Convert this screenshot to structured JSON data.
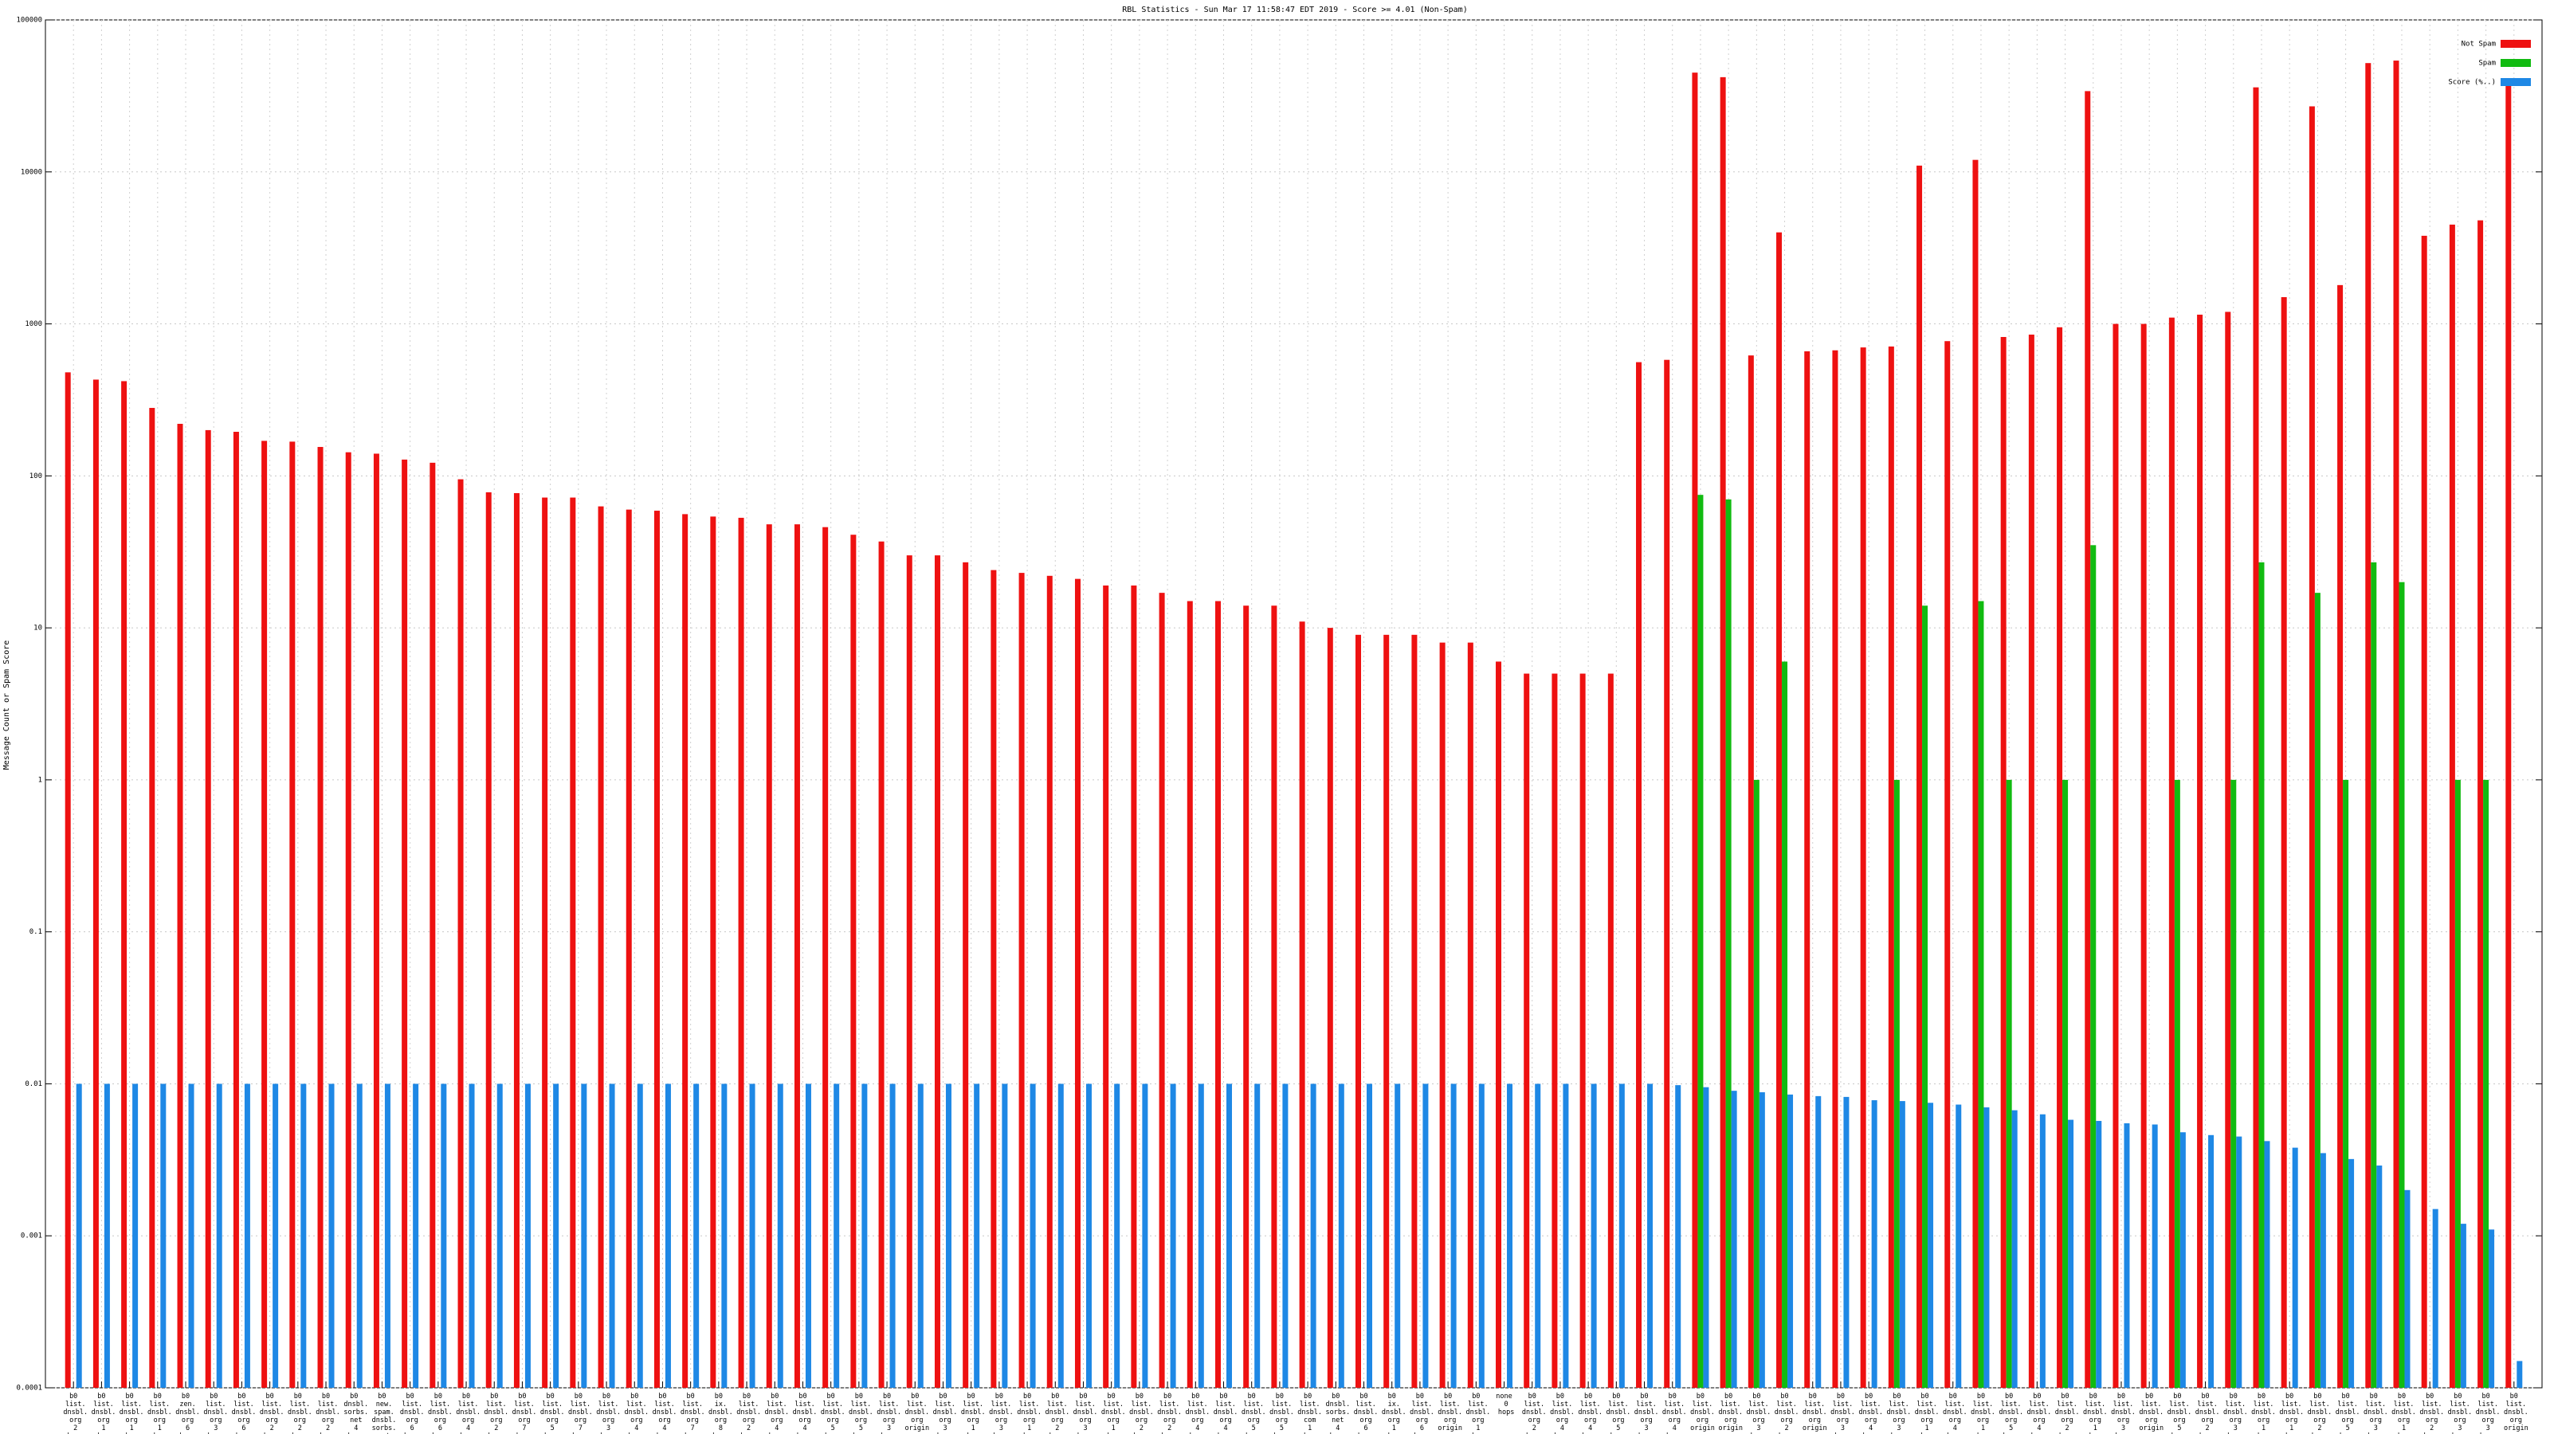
{
  "chart_data": {
    "type": "bar",
    "title": "RBL Statistics - Sun Mar 17 11:58:47 EDT 2019 - Score >= 4.01 (Non-Spam)",
    "y_label": "Message Count or Spam Score",
    "log_scale": true,
    "grid": true,
    "legend_corner": "top right",
    "ylim": [
      0.0001,
      100000
    ],
    "yticks": [
      0.0001,
      0.001,
      0.01,
      0.1,
      1,
      10,
      100,
      1000,
      10000,
      100000
    ],
    "categories": [
      "b0 list. dnsbl. org 2 hops",
      "b0 list. dnsbl. org 1 hop",
      "b0 list. dnsbl. org 1 hop",
      "b0 list. dnsbl. org 1 hop",
      "b0 zen. dnsbl. org 6 hops",
      "b0 list. dnsbl. org 3 hops",
      "b0 list. dnsbl. org 6 hops",
      "b0 list. dnsbl. org 2 hops",
      "b0 list. dnsbl. org 2 hops",
      "b0 list. dnsbl. org 2 hops",
      "b0 dnsbl. sorbs. net 4 hops",
      "b0 new. spam. dnsbl. sorbs. net 4 hops",
      "b0 list. dnsbl. org 6 hops",
      "b0 list. dnsbl. org 6 hops",
      "b0 list. dnsbl. org 4 hops",
      "b0 list. dnsbl. org 2 hops",
      "b0 list. dnsbl. org 7 hops",
      "b0 list. dnsbl. org 5 hops",
      "b0 list. dnsbl. org 7 hops",
      "b0 list. dnsbl. org 3 hops",
      "b0 list. dnsbl. org 4 hops",
      "b0 list. dnsbl. org 4 hops",
      "b0 list. dnsbl. org 7 hops",
      "b0 ix. dnsbl. org 8 hops",
      "b0 list. dnsbl. org 2 hops",
      "b0 list. dnsbl. org 4 hops",
      "b0 list. dnsbl. org 4 hops",
      "b0 list. dnsbl. org 5 hops",
      "b0 list. dnsbl. org 5 hops",
      "b0 list. dnsbl. org 3 hops",
      "b0 list. dnsbl. org origin",
      "b0 list. dnsbl. org 3 hops",
      "b0 list. dnsbl. org 1 hop",
      "b0 list. dnsbl. org 3 hops",
      "b0 list. dnsbl. org 1 hop",
      "b0 list. dnsbl. org 2 hops",
      "b0 list. dnsbl. org 3 hops",
      "b0 list. dnsbl. org 1 hop",
      "b0 list. dnsbl. org 2 hops",
      "b0 list. dnsbl. org 2 hops",
      "b0 list. dnsbl. org 4 hops",
      "b0 list. dnsbl. org 4 hops",
      "b0 list. dnsbl. org 5 hops",
      "b0 list. dnsbl. org 5 hops",
      "b0 list. dnsbl. com 1 hop",
      "b0 dnsbl. sorbs. net 4 hops",
      "b0 list. dnsbl. org 6 hops",
      "b0 ix. dnsbl. org 1 hop",
      "b0 list. dnsbl. org 6 hops",
      "b0 list. dnsbl. org origin",
      "b0 list. dnsbl. org 1 hop",
      "none 0 hops",
      "b0 list. dnsbl. org 2 hops",
      "b0 list. dnsbl. org 4 hops",
      "b0 list. dnsbl. org 4 hops",
      "b0 list. dnsbl. org 5 hops",
      "b0 list. dnsbl. org 3 hops",
      "b0 list. dnsbl. org 4 hops",
      "b0 list. dnsbl. org origin",
      "b0 list. dnsbl. org origin",
      "b0 list. dnsbl. org 3 hops",
      "b0 list. dnsbl. org 2 hops",
      "b0 list. dnsbl. org origin",
      "b0 list. dnsbl. org 3 hops",
      "b0 list. dnsbl. org 4 hops",
      "b0 list. dnsbl. org 3 hops",
      "b0 list. dnsbl. org 1 hop",
      "b0 list. dnsbl. org 4 hops",
      "b0 list. dnsbl. org 1 hop",
      "b0 list. dnsbl. org 5 hops",
      "b0 list. dnsbl. org 4 hops",
      "b0 list. dnsbl. org 2 hops",
      "b0 list. dnsbl. org 1 hop",
      "b0 list. dnsbl. org 3 hops",
      "b0 list. dnsbl. org origin",
      "b0 list. dnsbl. org 5 hops",
      "b0 list. dnsbl. org 2 hops",
      "b0 list. dnsbl. org 3 hops",
      "b0 list. dnsbl. org 1 hop",
      "b0 list. dnsbl. org 1 hop",
      "b0 list. dnsbl. org 2 hops",
      "b0 list. dnsbl. org 5 hops",
      "b0 list. dnsbl. org 3 hops",
      "b0 list. dnsbl. org 1 hop",
      "b0 list. dnsbl. org 2 hops",
      "b0 list. dnsbl. org 3 hops",
      "b0 list. dnsbl. org 3 hops",
      "b0 list. dnsbl. org origin"
    ],
    "series": [
      {
        "name": "Not Spam",
        "color": "#ee1111",
        "values": [
          480,
          430,
          420,
          280,
          220,
          200,
          195,
          170,
          168,
          155,
          143,
          140,
          128,
          122,
          95,
          78,
          77,
          72,
          72,
          63,
          60,
          59,
          56,
          54,
          53,
          48,
          48,
          46,
          41,
          37,
          30,
          30,
          27,
          24,
          23,
          22,
          21,
          19,
          19,
          17,
          15,
          15,
          14,
          14,
          11,
          10,
          9,
          9,
          9,
          8,
          8,
          6,
          5,
          5,
          5,
          5,
          560,
          580,
          45000,
          42000,
          620,
          4000,
          660,
          670,
          700,
          710,
          11000,
          770,
          12000,
          820,
          850,
          950,
          34000,
          1000,
          1000,
          1100,
          1150,
          1200,
          36000,
          1500,
          27000,
          1800,
          52000,
          54000,
          3800,
          4500,
          4800,
          40000
        ]
      },
      {
        "name": "Spam",
        "color": "#11bb11",
        "values": [
          null,
          null,
          null,
          null,
          null,
          null,
          null,
          null,
          null,
          null,
          null,
          null,
          null,
          null,
          null,
          null,
          null,
          null,
          null,
          null,
          null,
          null,
          null,
          null,
          null,
          null,
          null,
          null,
          null,
          null,
          null,
          null,
          null,
          null,
          null,
          null,
          null,
          null,
          null,
          null,
          null,
          null,
          null,
          null,
          null,
          null,
          null,
          null,
          null,
          null,
          null,
          null,
          null,
          null,
          null,
          null,
          null,
          null,
          75,
          70,
          1,
          6,
          null,
          null,
          null,
          1,
          14,
          null,
          15,
          1,
          null,
          1,
          35,
          null,
          null,
          1,
          null,
          1,
          27,
          null,
          17,
          1,
          27,
          20,
          null,
          1,
          1,
          null
        ]
      },
      {
        "name": "Score (%..)",
        "color": "#1e88e5",
        "values": [
          0.01,
          0.01,
          0.01,
          0.01,
          0.01,
          0.01,
          0.01,
          0.01,
          0.01,
          0.01,
          0.01,
          0.01,
          0.01,
          0.01,
          0.01,
          0.01,
          0.01,
          0.01,
          0.01,
          0.01,
          0.01,
          0.01,
          0.01,
          0.01,
          0.01,
          0.01,
          0.01,
          0.01,
          0.01,
          0.01,
          0.01,
          0.01,
          0.01,
          0.01,
          0.01,
          0.01,
          0.01,
          0.01,
          0.01,
          0.01,
          0.01,
          0.01,
          0.01,
          0.01,
          0.01,
          0.01,
          0.01,
          0.01,
          0.01,
          0.01,
          0.01,
          0.01,
          0.01,
          0.01,
          0.01,
          0.01,
          0.01,
          0.0098,
          0.0095,
          0.009,
          0.0088,
          0.0085,
          0.0083,
          0.0082,
          0.0078,
          0.0077,
          0.0075,
          0.0073,
          0.007,
          0.0067,
          0.0063,
          0.0058,
          0.0057,
          0.0055,
          0.0054,
          0.0048,
          0.0046,
          0.0045,
          0.0042,
          0.0038,
          0.0035,
          0.0032,
          0.0029,
          0.002,
          0.0015,
          0.0012,
          0.0011,
          0.00015
        ]
      }
    ]
  }
}
